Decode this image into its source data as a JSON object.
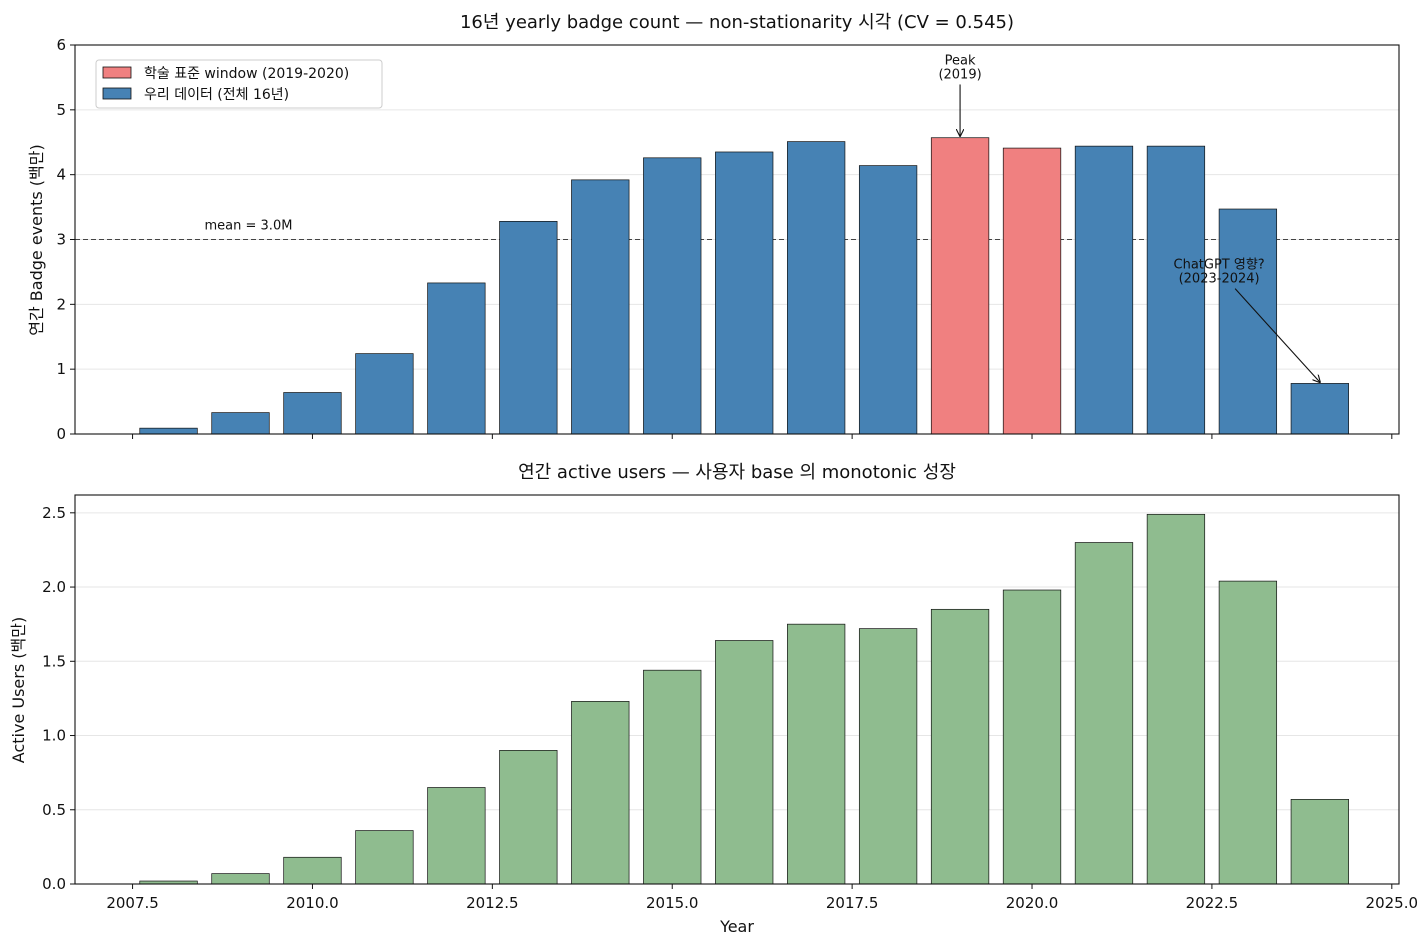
{
  "chart_data": [
    {
      "type": "bar",
      "title": "16년 yearly badge count — non-stationarity 시각 (CV = 0.545)",
      "xlabel": "",
      "ylabel": "연간 Badge events (백만)",
      "xlim": [
        2006.7,
        2025.1
      ],
      "ylim": [
        0,
        6
      ],
      "yticks": [
        0,
        1,
        2,
        3,
        4,
        5,
        6
      ],
      "ytick_labels": [
        "0",
        "1",
        "2",
        "3",
        "4",
        "5",
        "6"
      ],
      "xticks": [
        2007.5,
        2010.0,
        2012.5,
        2015.0,
        2017.5,
        2020.0,
        2022.5,
        2025.0
      ],
      "show_xtick_labels": false,
      "grid": "horizontal",
      "x": [
        2008,
        2009,
        2010,
        2011,
        2012,
        2013,
        2014,
        2015,
        2016,
        2017,
        2018,
        2019,
        2020,
        2021,
        2022,
        2023,
        2024
      ],
      "series": [
        {
          "name": "우리 데이터 (전체 16년)",
          "color": "#4682b4",
          "values": [
            0.09,
            0.33,
            0.64,
            1.24,
            2.33,
            3.28,
            3.92,
            4.26,
            4.35,
            4.51,
            4.14,
            4.57,
            4.41,
            4.44,
            4.44,
            3.47,
            0.78
          ]
        }
      ],
      "highlight": {
        "name": "학술 표준 window (2019-2020)",
        "color": "#f08080",
        "years": [
          2019,
          2020
        ]
      },
      "legend": {
        "placement": "top-left",
        "entries": [
          {
            "label": "학술 표준 window (2019-2020)",
            "color": "#f08080"
          },
          {
            "label": "우리 데이터 (전체 16년)",
            "color": "#4682b4"
          }
        ]
      },
      "mean_line": {
        "value": 3.0,
        "label": "mean = 3.0M",
        "label_x": 2008.5
      },
      "annotations": [
        {
          "lines": [
            "Peak",
            "(2019)"
          ],
          "target_x": 2019,
          "target_y": 4.6,
          "text_x": 2019,
          "text_y": 5.7
        },
        {
          "lines": [
            "ChatGPT 영향?",
            "(2023-2024)"
          ],
          "target_x": 2024,
          "target_y": 0.8,
          "text_x": 2022.6,
          "text_y": 2.55
        }
      ]
    },
    {
      "type": "bar",
      "title": "연간 active users — 사용자 base 의 monotonic 성장",
      "xlabel": "Year",
      "ylabel": "Active Users (백만)",
      "xlim": [
        2006.7,
        2025.1
      ],
      "ylim": [
        0,
        2.62
      ],
      "yticks": [
        0,
        0.5,
        1.0,
        1.5,
        2.0,
        2.5
      ],
      "ytick_labels": [
        "0.0",
        "0.5",
        "1.0",
        "1.5",
        "2.0",
        "2.5"
      ],
      "xticks": [
        2007.5,
        2010.0,
        2012.5,
        2015.0,
        2017.5,
        2020.0,
        2022.5,
        2025.0
      ],
      "xtick_labels": [
        "2007.5",
        "2010.0",
        "2012.5",
        "2015.0",
        "2017.5",
        "2020.0",
        "2022.5",
        "2025.0"
      ],
      "show_xtick_labels": true,
      "grid": "horizontal",
      "x": [
        2008,
        2009,
        2010,
        2011,
        2012,
        2013,
        2014,
        2015,
        2016,
        2017,
        2018,
        2019,
        2020,
        2021,
        2022,
        2023,
        2024
      ],
      "series": [
        {
          "color": "#8fbc8f",
          "values": [
            0.02,
            0.07,
            0.18,
            0.36,
            0.65,
            0.9,
            1.23,
            1.44,
            1.64,
            1.75,
            1.72,
            1.85,
            1.98,
            2.3,
            2.49,
            2.04,
            0.57
          ]
        }
      ]
    }
  ]
}
